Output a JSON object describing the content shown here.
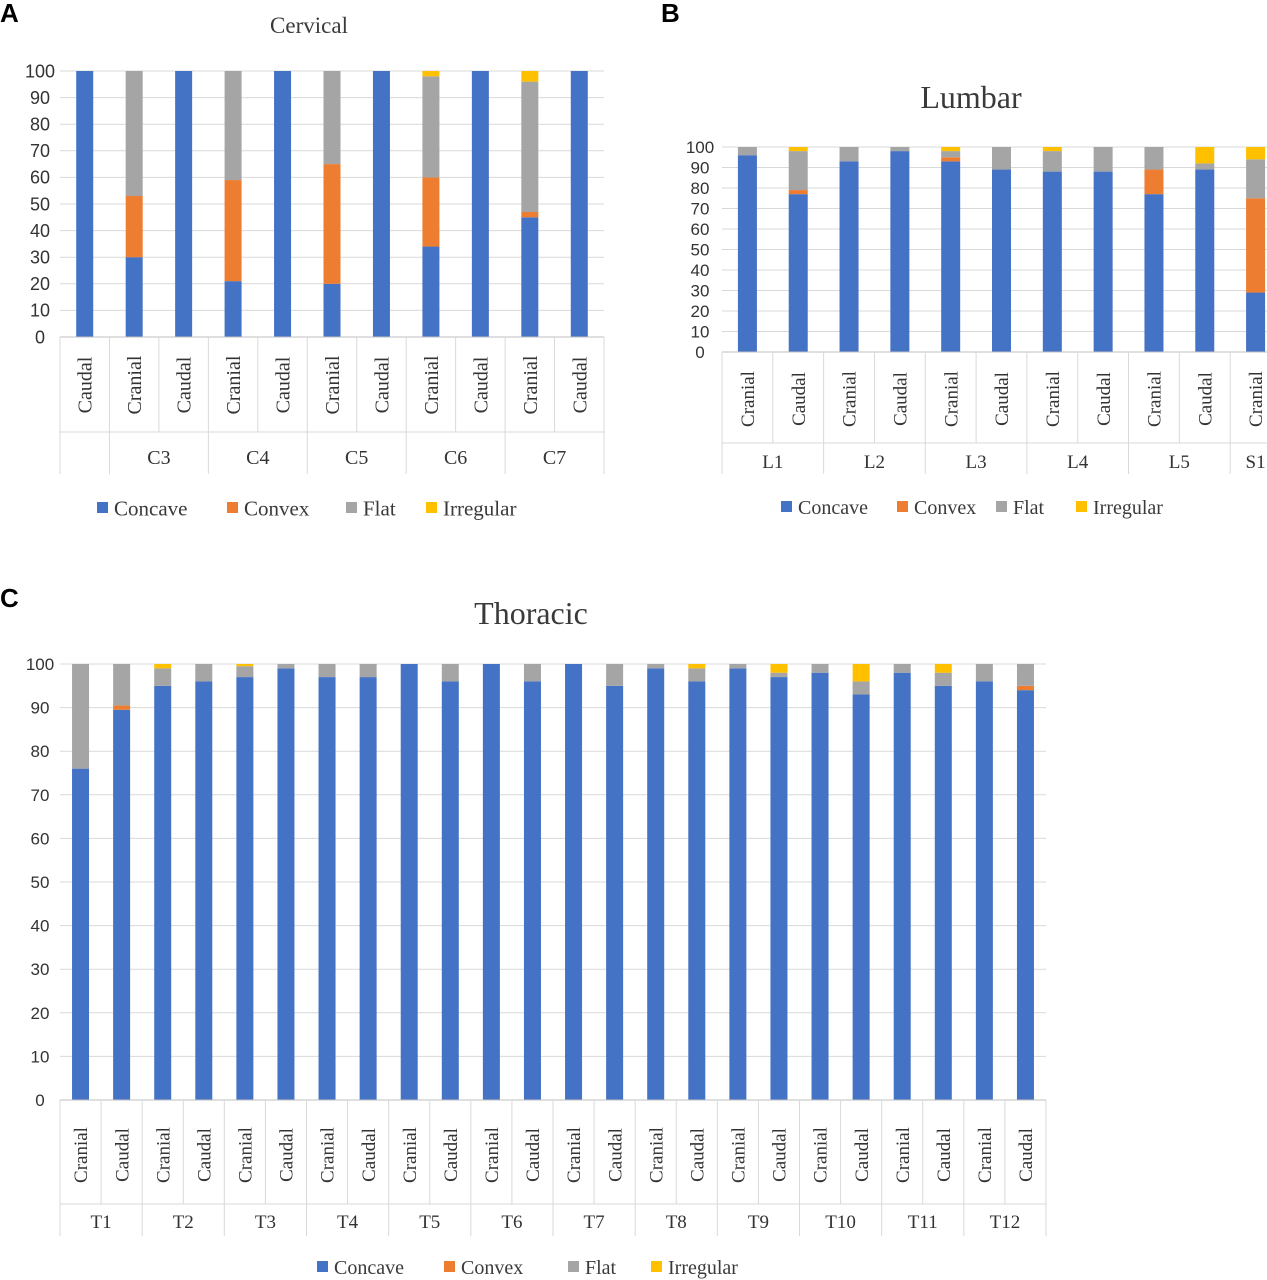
{
  "series_names": [
    "Concave",
    "Convex",
    "Flat",
    "Irregular"
  ],
  "colors": {
    "concave": "#4472C4",
    "convex": "#ED7D31",
    "flat": "#A5A5A5",
    "irregular": "#FFC000"
  },
  "chart_data": [
    {
      "panel": "A",
      "type": "bar",
      "stacked": true,
      "title": "Cervical",
      "ylim": [
        0,
        100
      ],
      "yticks": [
        0,
        10,
        20,
        30,
        40,
        50,
        60,
        70,
        80,
        90,
        100
      ],
      "grid": true,
      "legend_position": "bottom",
      "categories": [
        "Caudal",
        "Cranial",
        "Caudal",
        "Cranial",
        "Caudal",
        "Cranial",
        "Caudal",
        "Cranial",
        "Caudal",
        "Cranial",
        "Caudal"
      ],
      "groups": [
        {
          "label": "",
          "count": 1
        },
        {
          "label": "C3",
          "count": 2
        },
        {
          "label": "C4",
          "count": 2
        },
        {
          "label": "C5",
          "count": 2
        },
        {
          "label": "C6",
          "count": 2
        },
        {
          "label": "C7",
          "count": 2
        }
      ],
      "series": [
        {
          "name": "Concave",
          "values": [
            100,
            30,
            100,
            21,
            100,
            20,
            100,
            34,
            100,
            45,
            100
          ]
        },
        {
          "name": "Convex",
          "values": [
            0,
            23,
            0,
            38,
            0,
            45,
            0,
            26,
            0,
            2,
            0
          ]
        },
        {
          "name": "Flat",
          "values": [
            0,
            47,
            0,
            41,
            0,
            35,
            0,
            38,
            0,
            49,
            0
          ]
        },
        {
          "name": "Irregular",
          "values": [
            0,
            0,
            0,
            0,
            0,
            0,
            0,
            2,
            0,
            4,
            0
          ]
        }
      ]
    },
    {
      "panel": "B",
      "type": "bar",
      "stacked": true,
      "title": "Lumbar",
      "ylim": [
        0,
        100
      ],
      "yticks": [
        0,
        10,
        20,
        30,
        40,
        50,
        60,
        70,
        80,
        90,
        100
      ],
      "grid": true,
      "legend_position": "bottom",
      "categories": [
        "Cranial",
        "Caudal",
        "Cranial",
        "Caudal",
        "Cranial",
        "Caudal",
        "Cranial",
        "Caudal",
        "Cranial",
        "Caudal",
        "Cranial"
      ],
      "groups": [
        {
          "label": "L1",
          "count": 2
        },
        {
          "label": "L2",
          "count": 2
        },
        {
          "label": "L3",
          "count": 2
        },
        {
          "label": "L4",
          "count": 2
        },
        {
          "label": "L5",
          "count": 2
        },
        {
          "label": "S1",
          "count": 1
        }
      ],
      "series": [
        {
          "name": "Concave",
          "values": [
            96,
            77,
            93,
            98,
            93,
            89,
            88,
            88,
            77,
            89,
            29
          ]
        },
        {
          "name": "Convex",
          "values": [
            0,
            2,
            0,
            0,
            2,
            0,
            0,
            0,
            12,
            0,
            46
          ]
        },
        {
          "name": "Flat",
          "values": [
            4,
            19,
            7,
            2,
            3,
            11,
            10,
            12,
            11,
            3,
            19
          ]
        },
        {
          "name": "Irregular",
          "values": [
            0,
            2,
            0,
            0,
            2,
            0,
            2,
            0,
            0,
            8,
            6
          ]
        }
      ]
    },
    {
      "panel": "C",
      "type": "bar",
      "stacked": true,
      "title": "Thoracic",
      "ylim": [
        0,
        100
      ],
      "yticks": [
        0,
        10,
        20,
        30,
        40,
        50,
        60,
        70,
        80,
        90,
        100
      ],
      "grid": true,
      "legend_position": "bottom",
      "categories": [
        "Cranial",
        "Caudal",
        "Cranial",
        "Caudal",
        "Cranial",
        "Caudal",
        "Cranial",
        "Caudal",
        "Cranial",
        "Caudal",
        "Cranial",
        "Caudal",
        "Cranial",
        "Caudal",
        "Cranial",
        "Caudal",
        "Cranial",
        "Caudal",
        "Cranial",
        "Caudal",
        "Cranial",
        "Caudal",
        "Cranial",
        "Caudal"
      ],
      "groups": [
        {
          "label": "T1",
          "count": 2
        },
        {
          "label": "T2",
          "count": 2
        },
        {
          "label": "T3",
          "count": 2
        },
        {
          "label": "T4",
          "count": 2
        },
        {
          "label": "T5",
          "count": 2
        },
        {
          "label": "T6",
          "count": 2
        },
        {
          "label": "T7",
          "count": 2
        },
        {
          "label": "T8",
          "count": 2
        },
        {
          "label": "T9",
          "count": 2
        },
        {
          "label": "T10",
          "count": 2
        },
        {
          "label": "T11",
          "count": 2
        },
        {
          "label": "T12",
          "count": 2
        }
      ],
      "series": [
        {
          "name": "Concave",
          "values": [
            76,
            89.5,
            95,
            96,
            97,
            99,
            97,
            97,
            100,
            96,
            100,
            96,
            100,
            95,
            99,
            96,
            99,
            97,
            98,
            93,
            98,
            95,
            96,
            94
          ]
        },
        {
          "name": "Convex",
          "values": [
            0,
            1,
            0,
            0,
            0,
            0,
            0,
            0,
            0,
            0,
            0,
            0,
            0,
            0,
            0,
            0,
            0,
            0,
            0,
            0,
            0,
            0,
            0,
            1
          ]
        },
        {
          "name": "Flat",
          "values": [
            24,
            9.5,
            4,
            4,
            2.5,
            1,
            3,
            3,
            0,
            4,
            0,
            4,
            0,
            5,
            1,
            3,
            1,
            1,
            2,
            3,
            2,
            3,
            4,
            5
          ]
        },
        {
          "name": "Irregular",
          "values": [
            0,
            0,
            1,
            0,
            0.5,
            0,
            0,
            0,
            0,
            0,
            0,
            0,
            0,
            0,
            0,
            1,
            0,
            2,
            0,
            4,
            0,
            2,
            0,
            0
          ]
        }
      ]
    }
  ]
}
